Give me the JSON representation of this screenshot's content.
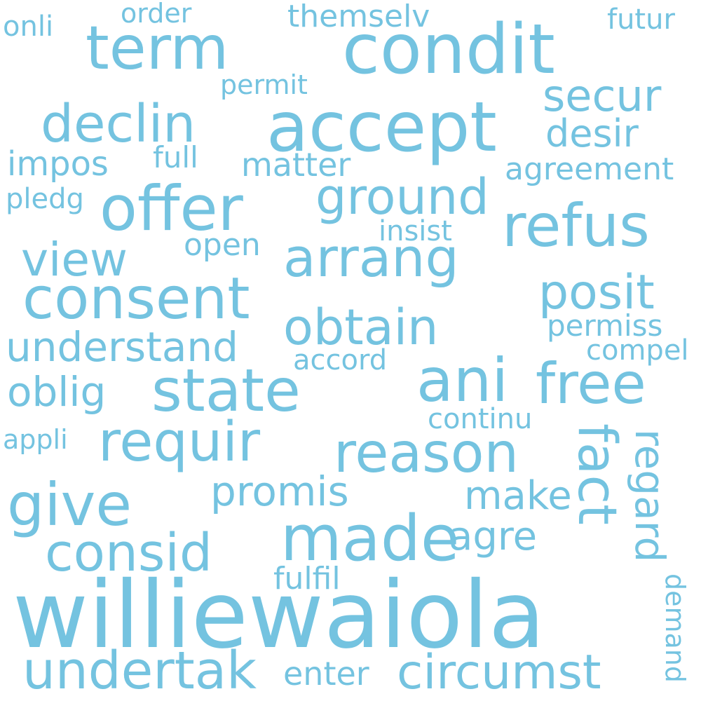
{
  "color": "#74c3e0",
  "background": "#ffffff",
  "words": {
    "williewaiola": "williewaiola",
    "condit": "condit",
    "accept": "accept",
    "offer": "offer",
    "term": "term",
    "refus": "refus",
    "consent": "consent",
    "state": "state",
    "ani": "ani",
    "free": "free",
    "made": "made",
    "reason": "reason",
    "give": "give",
    "declin": "declin",
    "arrang": "arrang",
    "requir": "requir",
    "undertak": "undertak",
    "ground": "ground",
    "fact": "fact",
    "obtain": "obtain",
    "consid": "consid",
    "circumst": "circumst",
    "posit": "posit",
    "understand": "understand",
    "view": "view",
    "secur": "secur",
    "regard": "regard",
    "oblig": "oblig",
    "promis": "promis",
    "agre": "agre",
    "desir": "desir",
    "make": "make",
    "agreement": "agreement",
    "themselv": "themselv",
    "matter": "matter",
    "permiss": "permiss",
    "open": "open",
    "impos": "impos",
    "fulfil": "fulfil",
    "continu": "continu",
    "enter": "enter",
    "insist": "insist",
    "accord": "accord",
    "permit": "permit",
    "full": "full",
    "compel": "compel",
    "order": "order",
    "futur": "futur",
    "onli": "onli",
    "pledg": "pledg",
    "appli": "appli",
    "demand": "demand"
  }
}
